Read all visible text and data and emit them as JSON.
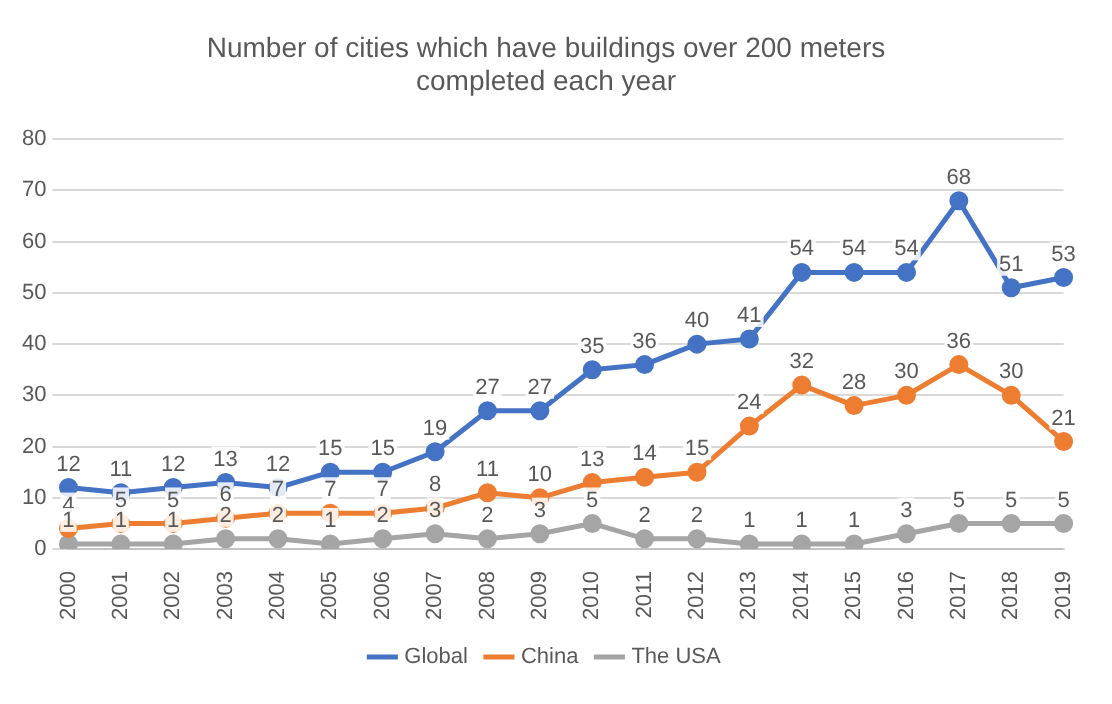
{
  "chart_data": {
    "type": "line",
    "title": "Number of cities which have buildings over 200 meters completed each year",
    "categories": [
      "2000",
      "2001",
      "2002",
      "2003",
      "2004",
      "2005",
      "2006",
      "2007",
      "2008",
      "2009",
      "2010",
      "2011",
      "2012",
      "2013",
      "2014",
      "2015",
      "2016",
      "2017",
      "2018",
      "2019"
    ],
    "series": [
      {
        "name": "Global",
        "color": "#4472c4",
        "values": [
          12,
          11,
          12,
          13,
          12,
          15,
          15,
          19,
          27,
          27,
          35,
          36,
          40,
          41,
          54,
          54,
          54,
          68,
          51,
          53
        ]
      },
      {
        "name": "China",
        "color": "#ed7d31",
        "values": [
          4,
          5,
          5,
          6,
          7,
          7,
          7,
          8,
          11,
          10,
          13,
          14,
          15,
          24,
          32,
          28,
          30,
          36,
          30,
          21
        ]
      },
      {
        "name": "The USA",
        "color": "#a5a5a5",
        "values": [
          1,
          1,
          1,
          2,
          2,
          1,
          2,
          3,
          2,
          3,
          5,
          2,
          2,
          1,
          1,
          1,
          3,
          5,
          5,
          5
        ]
      }
    ],
    "ylim": [
      0,
      80
    ],
    "yticks": [
      0,
      10,
      20,
      30,
      40,
      50,
      60,
      70,
      80
    ],
    "grid": "y",
    "legend": "bottom",
    "marker": "circle",
    "line_style": "solid",
    "data_labels": true
  }
}
